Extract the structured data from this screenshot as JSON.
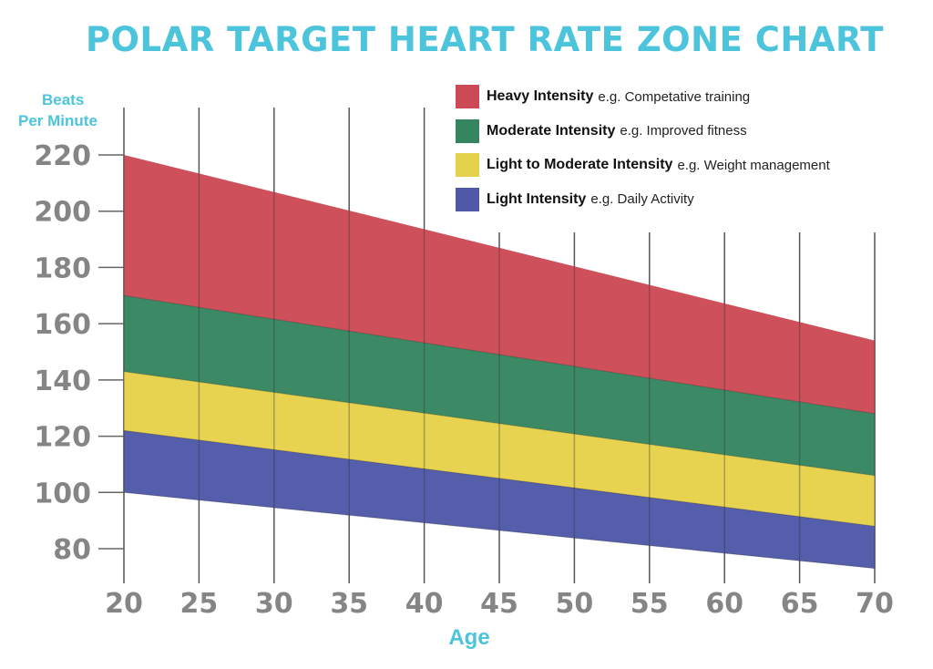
{
  "chart_data": {
    "type": "area",
    "title": "POLAR TARGET HEART RATE ZONE CHART",
    "ylabel_line1": "Beats",
    "ylabel_line2": "Per Minute",
    "xlabel": "Age",
    "x": [
      20,
      70
    ],
    "xticks": [
      20,
      25,
      30,
      35,
      40,
      45,
      50,
      55,
      60,
      65,
      70
    ],
    "yticks": [
      80,
      100,
      120,
      140,
      160,
      180,
      200,
      220
    ],
    "ylim": [
      70,
      225
    ],
    "xlim": [
      20,
      70
    ],
    "grid": "vertical",
    "legend_position": "top-right",
    "boundaries": {
      "max": [
        220,
        154
      ],
      "heavy_low": [
        170,
        128
      ],
      "moderate_low": [
        143,
        106
      ],
      "light_moderate_low": [
        122,
        88
      ],
      "light_low": [
        100,
        73
      ]
    },
    "series": [
      {
        "name": "Heavy Intensity",
        "description": "e.g. Competative training",
        "color": "#cc4a55",
        "upper": [
          220,
          154
        ],
        "lower": [
          170,
          128
        ]
      },
      {
        "name": "Moderate Intensity",
        "description": "e.g. Improved fitness",
        "color": "#358660",
        "upper": [
          170,
          128
        ],
        "lower": [
          143,
          106
        ]
      },
      {
        "name": "Light to Moderate Intensity",
        "description": "e.g. Weight management",
        "color": "#e6d24a",
        "upper": [
          143,
          106
        ],
        "lower": [
          122,
          88
        ]
      },
      {
        "name": "Light Intensity",
        "description": "e.g. Daily Activity",
        "color": "#5059a7",
        "upper": [
          122,
          88
        ],
        "lower": [
          100,
          73
        ]
      }
    ]
  }
}
